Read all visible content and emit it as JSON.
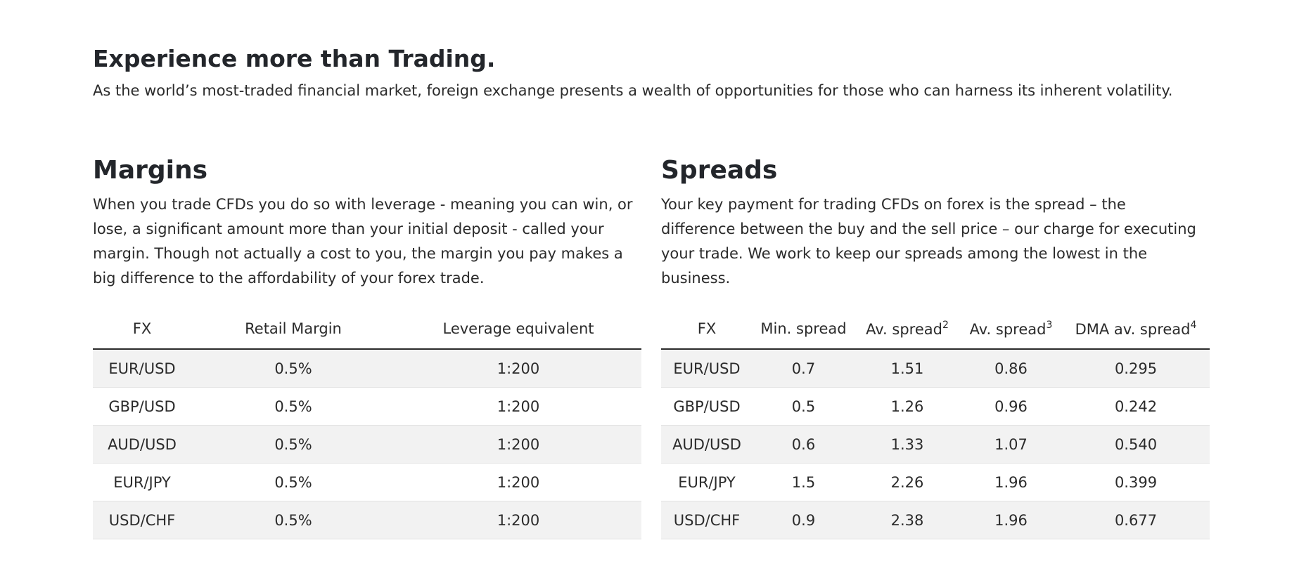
{
  "hero": {
    "title": "Experience more than Trading.",
    "subtitle": "As the world’s most-traded financial market, foreign exchange presents a wealth of opportunities for those who can harness its inherent volatility."
  },
  "margins": {
    "title": "Margins",
    "description": "When you trade CFDs you do so with leverage - meaning you can win, or lose, a significant amount more than your initial deposit - called your margin. Though not actually a cost to you, the margin you pay makes a big difference to the affordability of your forex trade.",
    "headers": [
      "FX",
      "Retail Margin",
      "Leverage equivalent"
    ],
    "rows": [
      [
        "EUR/USD",
        "0.5%",
        "1:200"
      ],
      [
        "GBP/USD",
        "0.5%",
        "1:200"
      ],
      [
        "AUD/USD",
        "0.5%",
        "1:200"
      ],
      [
        "EUR/JPY",
        "0.5%",
        "1:200"
      ],
      [
        "USD/CHF",
        "0.5%",
        "1:200"
      ]
    ]
  },
  "spreads": {
    "title": "Spreads",
    "description": "Your key payment for trading CFDs on forex is the spread – the difference between the buy and the sell price – our charge for executing your trade. We work to keep our spreads among the lowest in the business.",
    "headers": [
      {
        "label": "FX",
        "sup": ""
      },
      {
        "label": "Min. spread",
        "sup": ""
      },
      {
        "label": "Av. spread",
        "sup": "2"
      },
      {
        "label": "Av. spread",
        "sup": "3"
      },
      {
        "label": "DMA av. spread",
        "sup": "4"
      }
    ],
    "rows": [
      [
        "EUR/USD",
        "0.7",
        "1.51",
        "0.86",
        "0.295"
      ],
      [
        "GBP/USD",
        "0.5",
        "1.26",
        "0.96",
        "0.242"
      ],
      [
        "AUD/USD",
        "0.6",
        "1.33",
        "1.07",
        "0.540"
      ],
      [
        "EUR/JPY",
        "1.5",
        "2.26",
        "1.96",
        "0.399"
      ],
      [
        "USD/CHF",
        "0.9",
        "2.38",
        "1.96",
        "0.677"
      ]
    ]
  }
}
